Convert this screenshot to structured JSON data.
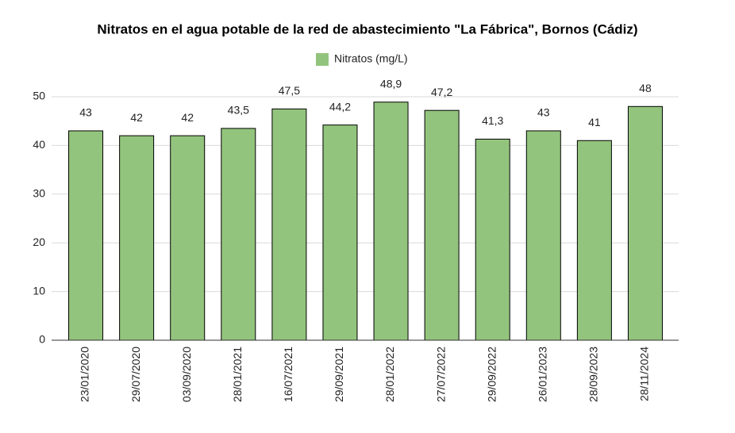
{
  "chart_data": {
    "type": "bar",
    "title": "Nitratos en el agua potable de la red de abastecimiento \"La Fábrica\", Bornos (Cádiz)",
    "categories": [
      "23/01/2020",
      "29/07/2020",
      "03/09/2020",
      "28/01/2021",
      "16/07/2021",
      "29/09/2021",
      "28/01/2022",
      "27/07/2022",
      "29/09/2022",
      "26/01/2023",
      "28/09/2023",
      "28/11/2024"
    ],
    "series": [
      {
        "name": "Nitratos (mg/L)",
        "color": "#93c47d",
        "values": [
          43,
          42,
          42,
          43.5,
          47.5,
          44.2,
          48.9,
          47.2,
          41.3,
          43,
          41,
          48
        ],
        "value_labels": [
          "43",
          "42",
          "42",
          "43,5",
          "47,5",
          "44,2",
          "48,9",
          "47,2",
          "41,3",
          "43",
          "41",
          "48"
        ]
      }
    ],
    "ylim": [
      0,
      50
    ],
    "yticks": [
      0,
      10,
      20,
      30,
      40,
      50
    ],
    "grid": true,
    "legend": "top"
  }
}
